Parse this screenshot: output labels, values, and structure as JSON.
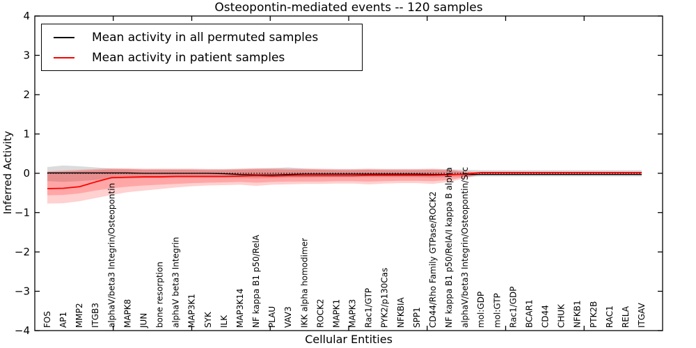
{
  "title": "Osteopontin-mediated events -- 120 samples",
  "legend": {
    "items": [
      {
        "label": "Mean activity in all permuted samples",
        "color": "#000000"
      },
      {
        "label": "Mean activity in patient samples",
        "color": "#ff0000"
      }
    ]
  },
  "chart_data": {
    "type": "line",
    "title": "Osteopontin-mediated events -- 120 samples",
    "xlabel": "Cellular Entities",
    "ylabel": "Inferred Activity",
    "ylim": [
      -4,
      4
    ],
    "yticks": [
      -4,
      -3,
      -2,
      -1,
      0,
      1,
      2,
      3,
      4
    ],
    "grid": false,
    "legend_position": "upper left",
    "zero_line": true,
    "categories": [
      "FOS",
      "AP1",
      "MMP2",
      "ITGB3",
      "alphaV/beta3 Integrin/Osteopontin",
      "MAPK8",
      "JUN",
      "bone resorption",
      "alphaV beta3 Integrin",
      "MAP3K1",
      "SYK",
      "ILK",
      "MAP3K14",
      "NF kappa B1 p50/RelA",
      "PLAU",
      "VAV3",
      "IKK alpha homodimer",
      "ROCK2",
      "MAPK1",
      "MAPK3",
      "Rac1/GTP",
      "PYK2/p130Cas",
      "NFKBIA",
      "SPP1",
      "CD44/Rho Family GTPase/ROCK2",
      "NF kappa B1 p50/RelA/I kappa B alpha",
      "alphaV/beta3 Integrin/Osteopontin/Src",
      "mol:GDP",
      "mol:GTP",
      "Rac1/GDP",
      "BCAR1",
      "CD44",
      "CHUK",
      "NFKB1",
      "PTK2B",
      "RAC1",
      "RELA",
      "ITGAV"
    ],
    "series": [
      {
        "name": "Mean activity in all permuted samples",
        "color": "#000000",
        "width": 1.3,
        "values": [
          0.01,
          0.01,
          0.01,
          0.01,
          0.01,
          0.01,
          0.0,
          0.0,
          0.0,
          0.0,
          0.0,
          -0.01,
          -0.03,
          -0.04,
          -0.04,
          -0.03,
          -0.02,
          -0.02,
          -0.02,
          -0.02,
          -0.02,
          -0.02,
          -0.02,
          -0.02,
          -0.03,
          -0.03,
          -0.03,
          -0.03,
          -0.03,
          -0.03,
          -0.03,
          -0.03,
          -0.03,
          -0.03,
          -0.03,
          -0.03,
          -0.03,
          -0.03
        ]
      },
      {
        "name": "Mean activity in patient samples",
        "color": "#ff0000",
        "width": 1.8,
        "values": [
          -0.39,
          -0.38,
          -0.34,
          -0.22,
          -0.11,
          -0.1,
          -0.09,
          -0.09,
          -0.08,
          -0.08,
          -0.08,
          -0.08,
          -0.07,
          -0.06,
          -0.07,
          -0.06,
          -0.06,
          -0.06,
          -0.06,
          -0.06,
          -0.05,
          -0.05,
          -0.05,
          -0.05,
          -0.05,
          -0.04,
          -0.02,
          0.02,
          0.02,
          0.02,
          0.02,
          0.02,
          0.02,
          0.02,
          0.02,
          0.02,
          0.02,
          0.02
        ]
      }
    ],
    "bands": [
      {
        "name": "permuted",
        "color": "#888888",
        "opacity": 0.3,
        "upper": [
          0.16,
          0.2,
          0.18,
          0.15,
          0.12,
          0.11,
          0.1,
          0.1,
          0.1,
          0.1,
          0.1,
          0.1,
          0.11,
          0.12,
          0.13,
          0.15,
          0.12,
          0.1,
          0.1,
          0.1,
          0.1,
          0.1,
          0.1,
          0.1,
          0.1,
          0.1,
          0.09,
          0.08,
          0.08,
          0.08,
          0.08,
          0.08,
          0.08,
          0.08,
          0.08,
          0.08,
          0.08,
          0.08
        ],
        "lower": [
          -0.2,
          -0.22,
          -0.2,
          -0.17,
          -0.14,
          -0.13,
          -0.12,
          -0.12,
          -0.11,
          -0.11,
          -0.11,
          -0.11,
          -0.12,
          -0.13,
          -0.12,
          -0.11,
          -0.11,
          -0.1,
          -0.1,
          -0.1,
          -0.1,
          -0.1,
          -0.1,
          -0.1,
          -0.11,
          -0.1,
          -0.09,
          -0.08,
          -0.08,
          -0.08,
          -0.08,
          -0.08,
          -0.08,
          -0.08,
          -0.08,
          -0.08,
          -0.08,
          -0.08
        ]
      },
      {
        "name": "patient-outer",
        "color": "#ff0000",
        "opacity": 0.18,
        "upper": [
          0.05,
          0.07,
          0.09,
          0.11,
          0.13,
          0.13,
          0.12,
          0.12,
          0.12,
          0.12,
          0.11,
          0.11,
          0.12,
          0.13,
          0.13,
          0.12,
          0.12,
          0.12,
          0.11,
          0.11,
          0.12,
          0.11,
          0.11,
          0.11,
          0.12,
          0.1,
          0.05,
          0.03,
          0.03,
          0.03,
          0.03,
          0.03,
          0.03,
          0.03,
          0.03,
          0.03,
          0.03,
          0.03
        ],
        "lower": [
          -0.77,
          -0.76,
          -0.71,
          -0.63,
          -0.55,
          -0.48,
          -0.44,
          -0.4,
          -0.36,
          -0.33,
          -0.31,
          -0.3,
          -0.29,
          -0.32,
          -0.29,
          -0.28,
          -0.27,
          -0.27,
          -0.26,
          -0.26,
          -0.28,
          -0.26,
          -0.25,
          -0.25,
          -0.27,
          -0.22,
          -0.13,
          -0.03,
          -0.03,
          -0.03,
          -0.03,
          -0.03,
          -0.03,
          -0.03,
          -0.03,
          -0.03,
          -0.03,
          -0.03
        ]
      },
      {
        "name": "patient-inner",
        "color": "#ff0000",
        "opacity": 0.2,
        "upper": [
          0.03,
          0.04,
          0.06,
          0.08,
          0.1,
          0.1,
          0.09,
          0.09,
          0.09,
          0.09,
          0.08,
          0.08,
          0.09,
          0.1,
          0.1,
          0.09,
          0.09,
          0.09,
          0.08,
          0.08,
          0.09,
          0.08,
          0.08,
          0.08,
          0.09,
          0.07,
          0.03,
          0.02,
          0.02,
          0.02,
          0.02,
          0.02,
          0.02,
          0.02,
          0.02,
          0.02,
          0.02,
          0.02
        ],
        "lower": [
          -0.56,
          -0.55,
          -0.51,
          -0.44,
          -0.38,
          -0.34,
          -0.31,
          -0.29,
          -0.27,
          -0.25,
          -0.24,
          -0.23,
          -0.22,
          -0.24,
          -0.22,
          -0.21,
          -0.21,
          -0.21,
          -0.2,
          -0.2,
          -0.21,
          -0.2,
          -0.19,
          -0.19,
          -0.2,
          -0.17,
          -0.1,
          -0.02,
          -0.02,
          -0.02,
          -0.02,
          -0.02,
          -0.02,
          -0.02,
          -0.02,
          -0.02,
          -0.02,
          -0.02
        ]
      }
    ]
  }
}
